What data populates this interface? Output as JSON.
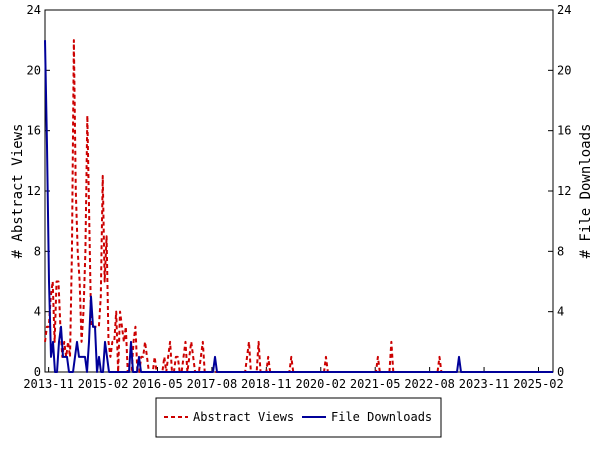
{
  "chart_data": {
    "type": "line",
    "y_left_label": "# Abstract Views",
    "y_right_label": "# File Downloads",
    "ylim": [
      0,
      24
    ],
    "yticks": [
      "0",
      "4",
      "8",
      "12",
      "16",
      "20",
      "24"
    ],
    "xtick_labels": [
      "2013-11",
      "2015-02",
      "2016-05",
      "2017-08",
      "2018-11",
      "2020-02",
      "2021-05",
      "2022-08",
      "2023-11",
      "2025-02"
    ],
    "x_start": "2013-10",
    "x_end": "2025-06",
    "legend_position": "bottom",
    "colors": {
      "abstract_views": "#cc0000",
      "file_downloads": "#000099"
    },
    "series": [
      {
        "name": "Abstract Views",
        "style": "dashed",
        "axis": "left",
        "values": [
          2,
          3,
          3,
          5,
          6,
          2,
          6,
          6,
          3,
          1,
          2,
          1,
          2,
          1,
          8,
          22,
          12,
          8,
          6,
          2,
          4,
          8,
          17,
          10,
          3,
          3,
          3,
          3,
          3,
          5,
          13,
          6,
          9,
          2,
          1,
          2,
          2,
          4,
          0,
          4,
          3,
          2,
          3,
          0,
          0,
          0,
          2,
          3,
          0,
          0,
          1,
          1,
          2,
          1,
          0,
          0,
          0,
          1,
          0,
          0,
          0,
          0,
          1,
          0,
          1,
          2,
          0,
          0,
          1,
          1,
          0,
          0,
          1,
          2,
          0,
          1,
          2,
          1,
          0,
          0,
          0,
          1,
          2,
          0,
          0,
          0,
          0,
          0,
          0,
          0,
          0,
          0,
          0,
          0,
          0,
          0,
          0,
          0,
          0,
          0,
          0,
          0,
          0,
          0,
          0,
          1,
          2,
          0,
          0,
          0,
          0,
          2,
          0,
          0,
          0,
          0,
          1,
          0,
          0,
          0,
          0,
          0,
          0,
          0,
          0,
          0,
          0,
          0,
          1,
          0,
          0,
          0,
          0,
          0,
          0,
          0,
          0,
          0,
          0,
          0,
          0,
          0,
          0,
          0,
          0,
          0,
          1,
          0,
          0,
          0,
          0,
          0,
          0,
          0,
          0,
          0,
          0,
          0,
          0,
          0,
          0,
          0,
          0,
          0,
          0,
          0,
          0,
          0,
          0,
          0,
          0,
          0,
          0,
          1,
          0,
          0,
          0,
          0,
          0,
          0,
          2,
          0,
          0,
          0,
          0,
          0,
          0,
          0,
          0,
          0,
          0,
          0,
          0,
          0,
          0,
          0,
          0,
          0,
          0,
          0,
          0,
          0,
          0,
          0,
          0,
          1,
          0,
          0,
          0,
          0,
          0,
          0,
          0,
          0,
          0,
          0,
          0,
          0,
          0,
          0,
          0,
          0,
          0,
          0,
          0,
          0,
          0,
          0,
          0,
          0,
          0,
          0,
          0,
          0,
          0,
          0,
          0,
          0,
          0,
          0,
          0,
          0,
          0,
          0,
          0,
          0,
          0,
          0,
          0,
          0,
          0,
          0,
          0,
          0,
          0,
          0,
          0,
          0,
          0,
          0,
          0,
          0,
          0,
          0,
          0
        ]
      },
      {
        "name": "File Downloads",
        "style": "solid",
        "axis": "right",
        "values": [
          22,
          15,
          6,
          1,
          2,
          0,
          0,
          2,
          3,
          1,
          1,
          1,
          0,
          0,
          0,
          1,
          2,
          1,
          1,
          1,
          1,
          0,
          2,
          5,
          3,
          3,
          0,
          1,
          0,
          0,
          2,
          1,
          0,
          0,
          0,
          0,
          0,
          0,
          0,
          0,
          0,
          0,
          0,
          2,
          0,
          0,
          0,
          1,
          0,
          0,
          0,
          0,
          0,
          0,
          0,
          0,
          0,
          0,
          0,
          0,
          0,
          0,
          0,
          0,
          0,
          0,
          0,
          0,
          0,
          0,
          0,
          0,
          0,
          0,
          0,
          0,
          0,
          0,
          0,
          0,
          0,
          0,
          0,
          0,
          0,
          1,
          0,
          0,
          0,
          0,
          0,
          0,
          0,
          0,
          0,
          0,
          0,
          0,
          0,
          0,
          0,
          0,
          0,
          0,
          0,
          0,
          0,
          0,
          0,
          0,
          0,
          0,
          0,
          0,
          0,
          0,
          0,
          0,
          0,
          0,
          0,
          0,
          0,
          0,
          0,
          0,
          0,
          0,
          0,
          0,
          0,
          0,
          0,
          0,
          0,
          0,
          0,
          0,
          0,
          0,
          0,
          0,
          0,
          0,
          0,
          0,
          0,
          0,
          0,
          0,
          0,
          0,
          0,
          0,
          0,
          0,
          0,
          0,
          0,
          0,
          0,
          0,
          0,
          0,
          0,
          0,
          0,
          0,
          0,
          0,
          0,
          0,
          0,
          0,
          0,
          0,
          0,
          0,
          0,
          0,
          0,
          0,
          0,
          0,
          0,
          0,
          0,
          0,
          0,
          0,
          0,
          0,
          0,
          0,
          0,
          0,
          0,
          0,
          0,
          0,
          0,
          0,
          0,
          0,
          0,
          0,
          0,
          1,
          0,
          0,
          0,
          0,
          0,
          0,
          0,
          0,
          0,
          0,
          0,
          0,
          0,
          0,
          0,
          0,
          0,
          0,
          0,
          0,
          0,
          0,
          0,
          0,
          0,
          0,
          0,
          0,
          0,
          0,
          0,
          0,
          0,
          0,
          0,
          0,
          0,
          0,
          0,
          0,
          0,
          0,
          0,
          0,
          0,
          0,
          0
        ]
      }
    ]
  }
}
